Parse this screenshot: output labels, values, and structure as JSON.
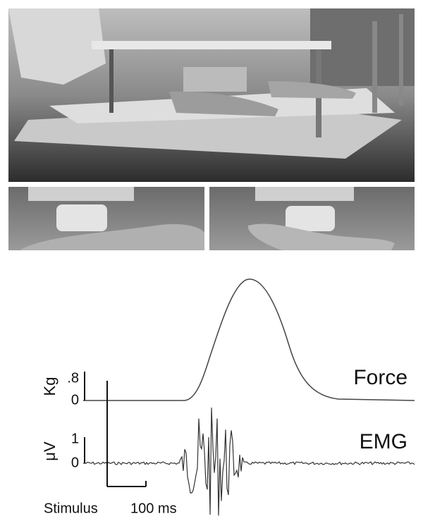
{
  "figure": {
    "force_panel": {
      "axis_label": "Kg",
      "tick_top": ".8",
      "tick_bottom": "0",
      "trace_label": "Force"
    },
    "emg_panel": {
      "axis_label": "μV",
      "tick_top": "1",
      "tick_bottom": "0",
      "trace_label": "EMG"
    },
    "scale": {
      "stimulus_label": "Stimulus",
      "time_bar_label": "100 ms"
    }
  }
}
